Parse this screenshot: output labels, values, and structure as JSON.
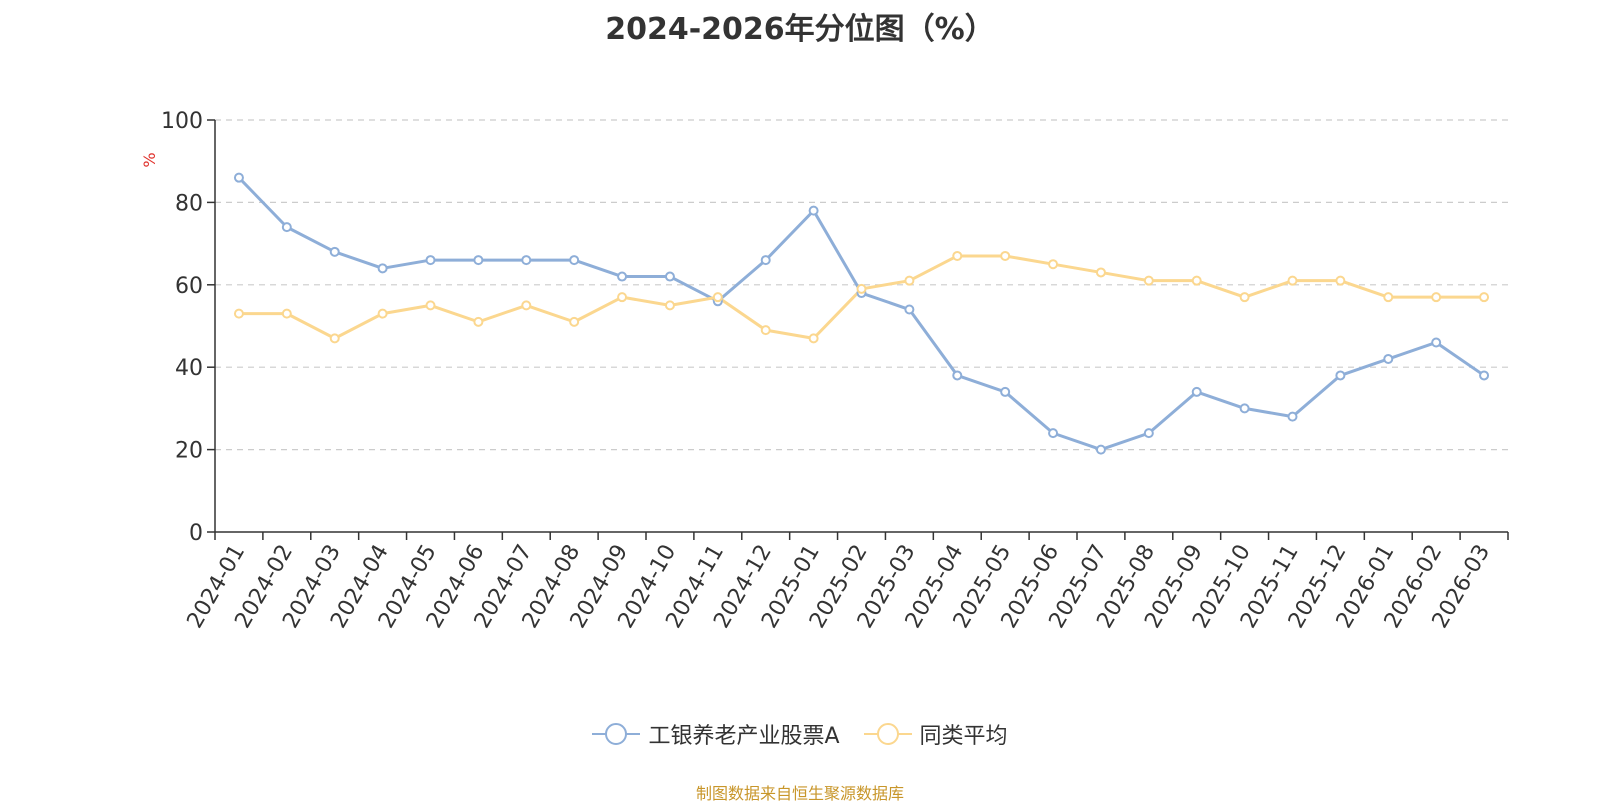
{
  "chart_data": {
    "type": "line",
    "title": "2024-2026年分位图（%）",
    "ylabel": "%",
    "ylim": [
      0,
      100
    ],
    "yticks": [
      0,
      20,
      40,
      60,
      80,
      100
    ],
    "grid": true,
    "legend_position": "bottom-center",
    "categories": [
      "2024-01",
      "2024-02",
      "2024-03",
      "2024-04",
      "2024-05",
      "2024-06",
      "2024-07",
      "2024-08",
      "2024-09",
      "2024-10",
      "2024-11",
      "2024-12",
      "2025-01",
      "2025-02",
      "2025-03",
      "2025-04",
      "2025-05",
      "2025-06",
      "2025-07",
      "2025-08",
      "2025-09",
      "2025-10",
      "2025-11",
      "2025-12",
      "2026-01",
      "2026-02",
      "2026-03"
    ],
    "series": [
      {
        "name": "工银养老产业股票A",
        "color": "#8eaed8",
        "values": [
          86,
          74,
          68,
          64,
          66,
          66,
          66,
          66,
          62,
          62,
          56,
          66,
          78,
          58,
          54,
          38,
          34,
          24,
          20,
          24,
          34,
          30,
          28,
          38,
          42,
          46,
          38
        ]
      },
      {
        "name": "同类平均",
        "color": "#fbd78f",
        "values": [
          53,
          53,
          47,
          53,
          55,
          51,
          55,
          51,
          57,
          55,
          57,
          49,
          47,
          59,
          61,
          67,
          67,
          65,
          63,
          61,
          61,
          57,
          61,
          61,
          57,
          57,
          57
        ]
      }
    ]
  },
  "source": "制图数据来自恒生聚源数据库"
}
